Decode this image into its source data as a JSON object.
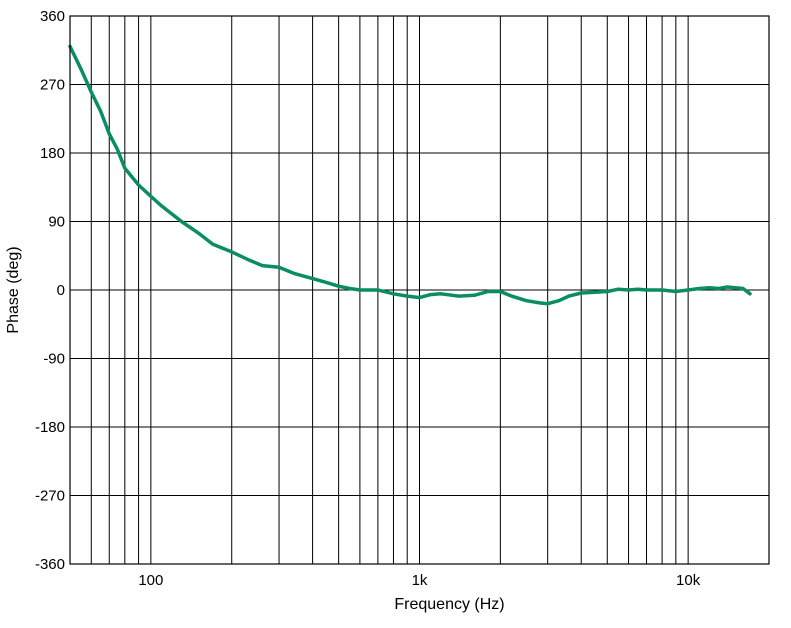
{
  "chart_data": {
    "type": "line",
    "xlabel": "Frequency (Hz)",
    "ylabel": "Phase (deg)",
    "xscale": "log",
    "xlim": [
      50,
      20000
    ],
    "ylim": [
      -360,
      360
    ],
    "grid": true,
    "x_ticks": [
      {
        "value": 100,
        "label": "100"
      },
      {
        "value": 1000,
        "label": "1k"
      },
      {
        "value": 10000,
        "label": "10k"
      }
    ],
    "y_ticks": [
      {
        "value": 360,
        "label": "360"
      },
      {
        "value": 270,
        "label": "270"
      },
      {
        "value": 180,
        "label": "180"
      },
      {
        "value": 90,
        "label": "90"
      },
      {
        "value": 0,
        "label": "0"
      },
      {
        "value": -90,
        "label": "-90"
      },
      {
        "value": -180,
        "label": "-180"
      },
      {
        "value": -270,
        "label": "-270"
      },
      {
        "value": -360,
        "label": "-360"
      }
    ],
    "line_color": "#0a8c64",
    "series": [
      {
        "x": [
          50,
          55,
          60,
          65,
          70,
          75,
          80,
          90,
          100,
          110,
          130,
          150,
          170,
          200,
          230,
          260,
          300,
          340,
          400,
          450,
          500,
          550,
          600,
          700,
          800,
          900,
          1000,
          1100,
          1200,
          1400,
          1600,
          1800,
          2000,
          2200,
          2500,
          2800,
          3000,
          3300,
          3600,
          4000,
          4500,
          5000,
          5500,
          6000,
          6500,
          7000,
          7500,
          8000,
          9000,
          10000,
          11000,
          12000,
          13000,
          14000,
          15000,
          16000,
          17000
        ],
        "y": [
          320,
          290,
          260,
          235,
          205,
          185,
          160,
          138,
          123,
          110,
          90,
          75,
          60,
          50,
          40,
          32,
          30,
          22,
          15,
          10,
          5,
          2,
          0,
          0,
          -5,
          -8,
          -10,
          -6,
          -5,
          -8,
          -7,
          -2,
          -2,
          -8,
          -14,
          -17,
          -18,
          -14,
          -8,
          -4,
          -3,
          -2,
          1,
          0,
          1,
          0,
          0,
          0,
          -2,
          0,
          2,
          3,
          2,
          4,
          3,
          2,
          -5
        ]
      }
    ]
  }
}
